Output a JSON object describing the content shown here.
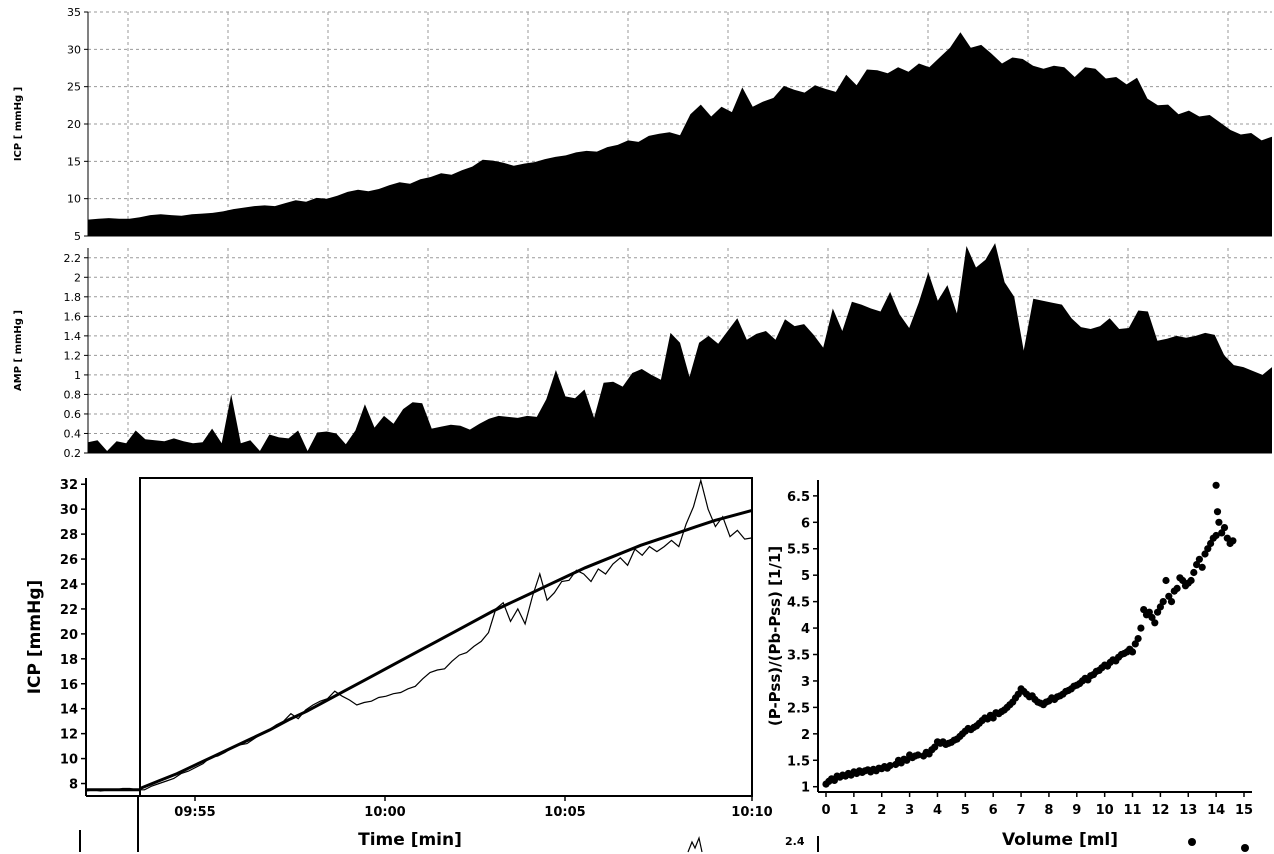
{
  "chart_data": [
    {
      "type": "area",
      "ylabel": "ICP [ mmHg ]",
      "ylim": [
        5,
        35
      ],
      "y_ticks": [
        5,
        10,
        15,
        20,
        25,
        30,
        35
      ],
      "grid": true,
      "series": [
        {
          "values": [
            7.2,
            7.3,
            7.4,
            7.3,
            7.3,
            7.5,
            7.8,
            7.9,
            7.8,
            7.7,
            7.9,
            8.0,
            8.1,
            8.3,
            8.6,
            8.8,
            9.0,
            9.1,
            9.0,
            9.4,
            9.8,
            9.6,
            10.1,
            10.0,
            10.4,
            10.9,
            11.2,
            11.0,
            11.3,
            11.8,
            12.2,
            12.0,
            12.6,
            12.9,
            13.4,
            13.2,
            13.8,
            14.3,
            15.2,
            15.1,
            14.8,
            14.4,
            14.7,
            14.9,
            15.3,
            15.6,
            15.8,
            16.2,
            16.4,
            16.3,
            16.9,
            17.2,
            17.8,
            17.6,
            18.4,
            18.7,
            18.9,
            18.5,
            21.3,
            22.6,
            21.0,
            22.3,
            21.6,
            24.9,
            22.3,
            23.0,
            23.5,
            25.1,
            24.6,
            24.2,
            25.2,
            24.7,
            24.3,
            26.6,
            25.2,
            27.3,
            27.2,
            26.8,
            27.6,
            27.0,
            28.1,
            27.6,
            28.9,
            30.2,
            32.3,
            30.2,
            30.6,
            29.4,
            28.1,
            28.9,
            28.7,
            27.8,
            27.4,
            27.8,
            27.6,
            26.3,
            27.6,
            27.4,
            26.1,
            26.3,
            25.3,
            26.2,
            23.4,
            22.5,
            22.6,
            21.3,
            21.8,
            21.0,
            21.2,
            20.2,
            19.2,
            18.6,
            18.8,
            17.8,
            18.3
          ]
        }
      ]
    },
    {
      "type": "area",
      "ylabel": "AMP [ mmHg ]",
      "ylim": [
        0.2,
        2.3
      ],
      "y_ticks": [
        0.2,
        0.4,
        0.6,
        0.8,
        1,
        1.2,
        1.4,
        1.6,
        1.8,
        2,
        2.2
      ],
      "y_tick_labels": [
        "0.2",
        "0.4",
        "0.6",
        "0.8",
        "1",
        "1.2",
        "1.4",
        "1.6",
        "1.8",
        "2",
        "2.2"
      ],
      "grid": true,
      "series": [
        {
          "values": [
            0.31,
            0.33,
            0.22,
            0.32,
            0.3,
            0.43,
            0.34,
            0.33,
            0.32,
            0.35,
            0.32,
            0.3,
            0.31,
            0.45,
            0.3,
            0.8,
            0.3,
            0.33,
            0.22,
            0.39,
            0.36,
            0.35,
            0.43,
            0.22,
            0.41,
            0.42,
            0.4,
            0.29,
            0.43,
            0.7,
            0.46,
            0.58,
            0.5,
            0.65,
            0.72,
            0.71,
            0.45,
            0.47,
            0.49,
            0.48,
            0.44,
            0.5,
            0.55,
            0.58,
            0.57,
            0.56,
            0.58,
            0.57,
            0.75,
            1.05,
            0.78,
            0.76,
            0.85,
            0.56,
            0.92,
            0.93,
            0.88,
            1.02,
            1.06,
            1.0,
            0.95,
            1.43,
            1.33,
            0.98,
            1.33,
            1.4,
            1.32,
            1.45,
            1.58,
            1.36,
            1.42,
            1.45,
            1.36,
            1.57,
            1.5,
            1.52,
            1.41,
            1.28,
            1.68,
            1.45,
            1.75,
            1.72,
            1.68,
            1.65,
            1.85,
            1.62,
            1.48,
            1.74,
            2.05,
            1.76,
            1.92,
            1.63,
            2.32,
            2.1,
            2.18,
            2.35,
            1.95,
            1.8,
            1.25,
            1.78,
            1.76,
            1.74,
            1.72,
            1.58,
            1.49,
            1.47,
            1.5,
            1.58,
            1.47,
            1.48,
            1.66,
            1.65,
            1.35,
            1.37,
            1.4,
            1.38,
            1.4,
            1.43,
            1.41,
            1.2,
            1.1,
            1.08,
            1.04,
            1.0,
            1.08
          ]
        }
      ]
    },
    {
      "type": "line",
      "xlabel": "Time [min]",
      "ylabel": "ICP [mmHg]",
      "x_tick_labels": [
        "09:55",
        "10:00",
        "10:05",
        "10:10"
      ],
      "ylim": [
        7,
        32.5
      ],
      "y_ticks": [
        8,
        10,
        12,
        14,
        16,
        18,
        20,
        22,
        24,
        26,
        28,
        30,
        32
      ],
      "series": [
        {
          "values": [
            7.4,
            7.5,
            7.4,
            7.5,
            7.5,
            7.6,
            7.6,
            7.5,
            7.5,
            7.8,
            8.0,
            8.2,
            8.4,
            8.8,
            9.0,
            9.3,
            9.6,
            10.1,
            10.2,
            10.5,
            10.9,
            11.1,
            11.2,
            11.6,
            12.0,
            12.3,
            12.7,
            13.0,
            13.6,
            13.2,
            13.9,
            14.3,
            14.6,
            14.8,
            15.4,
            15.0,
            14.7,
            14.3,
            14.5,
            14.6,
            14.9,
            15.0,
            15.2,
            15.3,
            15.6,
            15.8,
            16.4,
            16.9,
            17.1,
            17.2,
            17.8,
            18.3,
            18.5,
            19.0,
            19.4,
            20.1,
            22.0,
            22.5,
            21.0,
            22.0,
            20.8,
            23.0,
            24.8,
            22.7,
            23.3,
            24.2,
            24.3,
            25.1,
            24.8,
            24.2,
            25.2,
            24.8,
            25.6,
            26.1,
            25.5,
            26.8,
            26.3,
            27.0,
            26.6,
            27.0,
            27.5,
            27.0,
            28.8,
            30.2,
            32.3,
            30.0,
            28.6,
            29.4,
            27.8,
            28.3,
            27.6,
            27.7
          ]
        },
        {
          "values": [
            7.6,
            8.2,
            8.8,
            9.5,
            10.2,
            10.9,
            11.6,
            12.3,
            13.1,
            13.8,
            14.6,
            15.4,
            16.2,
            17.0,
            17.8,
            18.6,
            19.4,
            20.2,
            21.0,
            21.8,
            22.5,
            23.2,
            23.9,
            24.6,
            25.3,
            25.9,
            26.5,
            27.1,
            27.6,
            28.1,
            28.6,
            29.1,
            29.5,
            29.9
          ]
        }
      ]
    },
    {
      "type": "scatter",
      "xlabel": "Volume [ml]",
      "ylabel": "(P-Pss)/(Pb-Pss)  [1/1]",
      "xlim": [
        0,
        15
      ],
      "x_ticks": [
        0,
        1,
        2,
        3,
        4,
        5,
        6,
        7,
        8,
        9,
        10,
        11,
        12,
        13,
        14,
        15
      ],
      "ylim": [
        0.9,
        6.8
      ],
      "y_ticks": [
        1,
        1.5,
        2,
        2.5,
        3,
        3.5,
        4,
        4.5,
        5,
        5.5,
        6,
        6.5
      ],
      "y_tick_labels": [
        "1",
        "1.5",
        "2",
        "2.5",
        "3",
        "3.5",
        "4",
        "4.5",
        "5",
        "5.5",
        "6",
        "6.5"
      ],
      "points": [
        [
          0.0,
          1.05
        ],
        [
          0.1,
          1.1
        ],
        [
          0.2,
          1.15
        ],
        [
          0.3,
          1.12
        ],
        [
          0.4,
          1.2
        ],
        [
          0.5,
          1.18
        ],
        [
          0.6,
          1.22
        ],
        [
          0.7,
          1.2
        ],
        [
          0.8,
          1.25
        ],
        [
          0.9,
          1.22
        ],
        [
          1.0,
          1.28
        ],
        [
          1.1,
          1.25
        ],
        [
          1.2,
          1.3
        ],
        [
          1.3,
          1.27
        ],
        [
          1.4,
          1.3
        ],
        [
          1.5,
          1.32
        ],
        [
          1.6,
          1.28
        ],
        [
          1.7,
          1.33
        ],
        [
          1.8,
          1.3
        ],
        [
          1.9,
          1.35
        ],
        [
          2.0,
          1.34
        ],
        [
          2.1,
          1.38
        ],
        [
          2.2,
          1.35
        ],
        [
          2.3,
          1.4
        ],
        [
          2.5,
          1.42
        ],
        [
          2.6,
          1.5
        ],
        [
          2.7,
          1.45
        ],
        [
          2.8,
          1.52
        ],
        [
          2.9,
          1.5
        ],
        [
          3.0,
          1.6
        ],
        [
          3.1,
          1.55
        ],
        [
          3.2,
          1.58
        ],
        [
          3.3,
          1.6
        ],
        [
          3.5,
          1.58
        ],
        [
          3.6,
          1.65
        ],
        [
          3.7,
          1.62
        ],
        [
          3.8,
          1.7
        ],
        [
          3.9,
          1.75
        ],
        [
          4.0,
          1.85
        ],
        [
          4.1,
          1.82
        ],
        [
          4.2,
          1.85
        ],
        [
          4.3,
          1.8
        ],
        [
          4.4,
          1.82
        ],
        [
          4.5,
          1.84
        ],
        [
          4.6,
          1.88
        ],
        [
          4.7,
          1.9
        ],
        [
          4.8,
          1.95
        ],
        [
          4.9,
          2.0
        ],
        [
          5.0,
          2.05
        ],
        [
          5.1,
          2.1
        ],
        [
          5.2,
          2.08
        ],
        [
          5.3,
          2.12
        ],
        [
          5.4,
          2.15
        ],
        [
          5.5,
          2.2
        ],
        [
          5.6,
          2.25
        ],
        [
          5.7,
          2.3
        ],
        [
          5.8,
          2.28
        ],
        [
          5.9,
          2.35
        ],
        [
          6.0,
          2.3
        ],
        [
          6.1,
          2.4
        ],
        [
          6.2,
          2.38
        ],
        [
          6.3,
          2.42
        ],
        [
          6.4,
          2.45
        ],
        [
          6.5,
          2.5
        ],
        [
          6.6,
          2.55
        ],
        [
          6.7,
          2.6
        ],
        [
          6.8,
          2.68
        ],
        [
          6.9,
          2.75
        ],
        [
          7.0,
          2.85
        ],
        [
          7.1,
          2.8
        ],
        [
          7.2,
          2.75
        ],
        [
          7.3,
          2.7
        ],
        [
          7.4,
          2.72
        ],
        [
          7.5,
          2.65
        ],
        [
          7.6,
          2.6
        ],
        [
          7.7,
          2.58
        ],
        [
          7.8,
          2.55
        ],
        [
          7.9,
          2.6
        ],
        [
          8.0,
          2.62
        ],
        [
          8.1,
          2.68
        ],
        [
          8.2,
          2.65
        ],
        [
          8.3,
          2.7
        ],
        [
          8.4,
          2.72
        ],
        [
          8.5,
          2.75
        ],
        [
          8.6,
          2.8
        ],
        [
          8.7,
          2.82
        ],
        [
          8.8,
          2.85
        ],
        [
          8.9,
          2.9
        ],
        [
          9.0,
          2.92
        ],
        [
          9.1,
          2.95
        ],
        [
          9.2,
          3.0
        ],
        [
          9.3,
          3.05
        ],
        [
          9.4,
          3.02
        ],
        [
          9.5,
          3.1
        ],
        [
          9.6,
          3.12
        ],
        [
          9.7,
          3.18
        ],
        [
          9.8,
          3.2
        ],
        [
          9.9,
          3.25
        ],
        [
          10.0,
          3.3
        ],
        [
          10.1,
          3.28
        ],
        [
          10.2,
          3.35
        ],
        [
          10.3,
          3.4
        ],
        [
          10.4,
          3.38
        ],
        [
          10.5,
          3.45
        ],
        [
          10.6,
          3.5
        ],
        [
          10.7,
          3.52
        ],
        [
          10.8,
          3.55
        ],
        [
          10.9,
          3.6
        ],
        [
          11.0,
          3.55
        ],
        [
          11.1,
          3.7
        ],
        [
          11.2,
          3.8
        ],
        [
          11.3,
          4.0
        ],
        [
          11.4,
          4.35
        ],
        [
          11.5,
          4.25
        ],
        [
          11.6,
          4.3
        ],
        [
          11.7,
          4.2
        ],
        [
          11.8,
          4.1
        ],
        [
          11.9,
          4.3
        ],
        [
          12.0,
          4.4
        ],
        [
          12.1,
          4.5
        ],
        [
          12.2,
          4.9
        ],
        [
          12.3,
          4.6
        ],
        [
          12.4,
          4.5
        ],
        [
          12.5,
          4.7
        ],
        [
          12.6,
          4.75
        ],
        [
          12.7,
          4.95
        ],
        [
          12.8,
          4.9
        ],
        [
          12.9,
          4.8
        ],
        [
          13.0,
          4.85
        ],
        [
          13.1,
          4.9
        ],
        [
          13.2,
          5.05
        ],
        [
          13.3,
          5.2
        ],
        [
          13.4,
          5.3
        ],
        [
          13.5,
          5.15
        ],
        [
          13.6,
          5.4
        ],
        [
          13.7,
          5.5
        ],
        [
          13.8,
          5.6
        ],
        [
          13.9,
          5.7
        ],
        [
          14.0,
          5.75
        ],
        [
          14.05,
          6.2
        ],
        [
          14.1,
          6.0
        ],
        [
          14.2,
          5.8
        ],
        [
          14.3,
          5.9
        ],
        [
          14.4,
          5.7
        ],
        [
          14.5,
          5.6
        ],
        [
          14.6,
          5.65
        ],
        [
          14.0,
          6.7
        ]
      ]
    }
  ],
  "bottom_strip": {
    "label": "2.4"
  }
}
